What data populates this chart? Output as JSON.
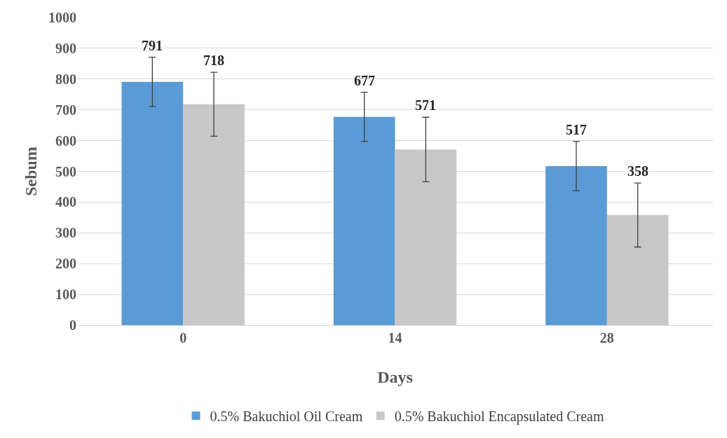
{
  "chart_data": {
    "type": "bar",
    "xlabel": "Days",
    "ylabel": "Sebum",
    "categories": [
      "0",
      "14",
      "28"
    ],
    "series": [
      {
        "name": "0.5% Bakuchiol Oil Cream",
        "color": "#5b9bd5",
        "values": [
          791,
          677,
          517
        ],
        "errors": [
          80,
          80,
          80
        ]
      },
      {
        "name": "0.5% Bakuchiol Encapsulated Cream",
        "color": "#c8c8c8",
        "values": [
          718,
          571,
          358
        ],
        "errors": [
          104,
          105,
          104
        ]
      }
    ],
    "ylim": [
      0,
      1000
    ],
    "yticks": [
      0,
      100,
      200,
      300,
      400,
      500,
      600,
      700,
      800,
      900,
      1000
    ],
    "grid": "y",
    "legend": "bottom",
    "data_labels": true
  }
}
